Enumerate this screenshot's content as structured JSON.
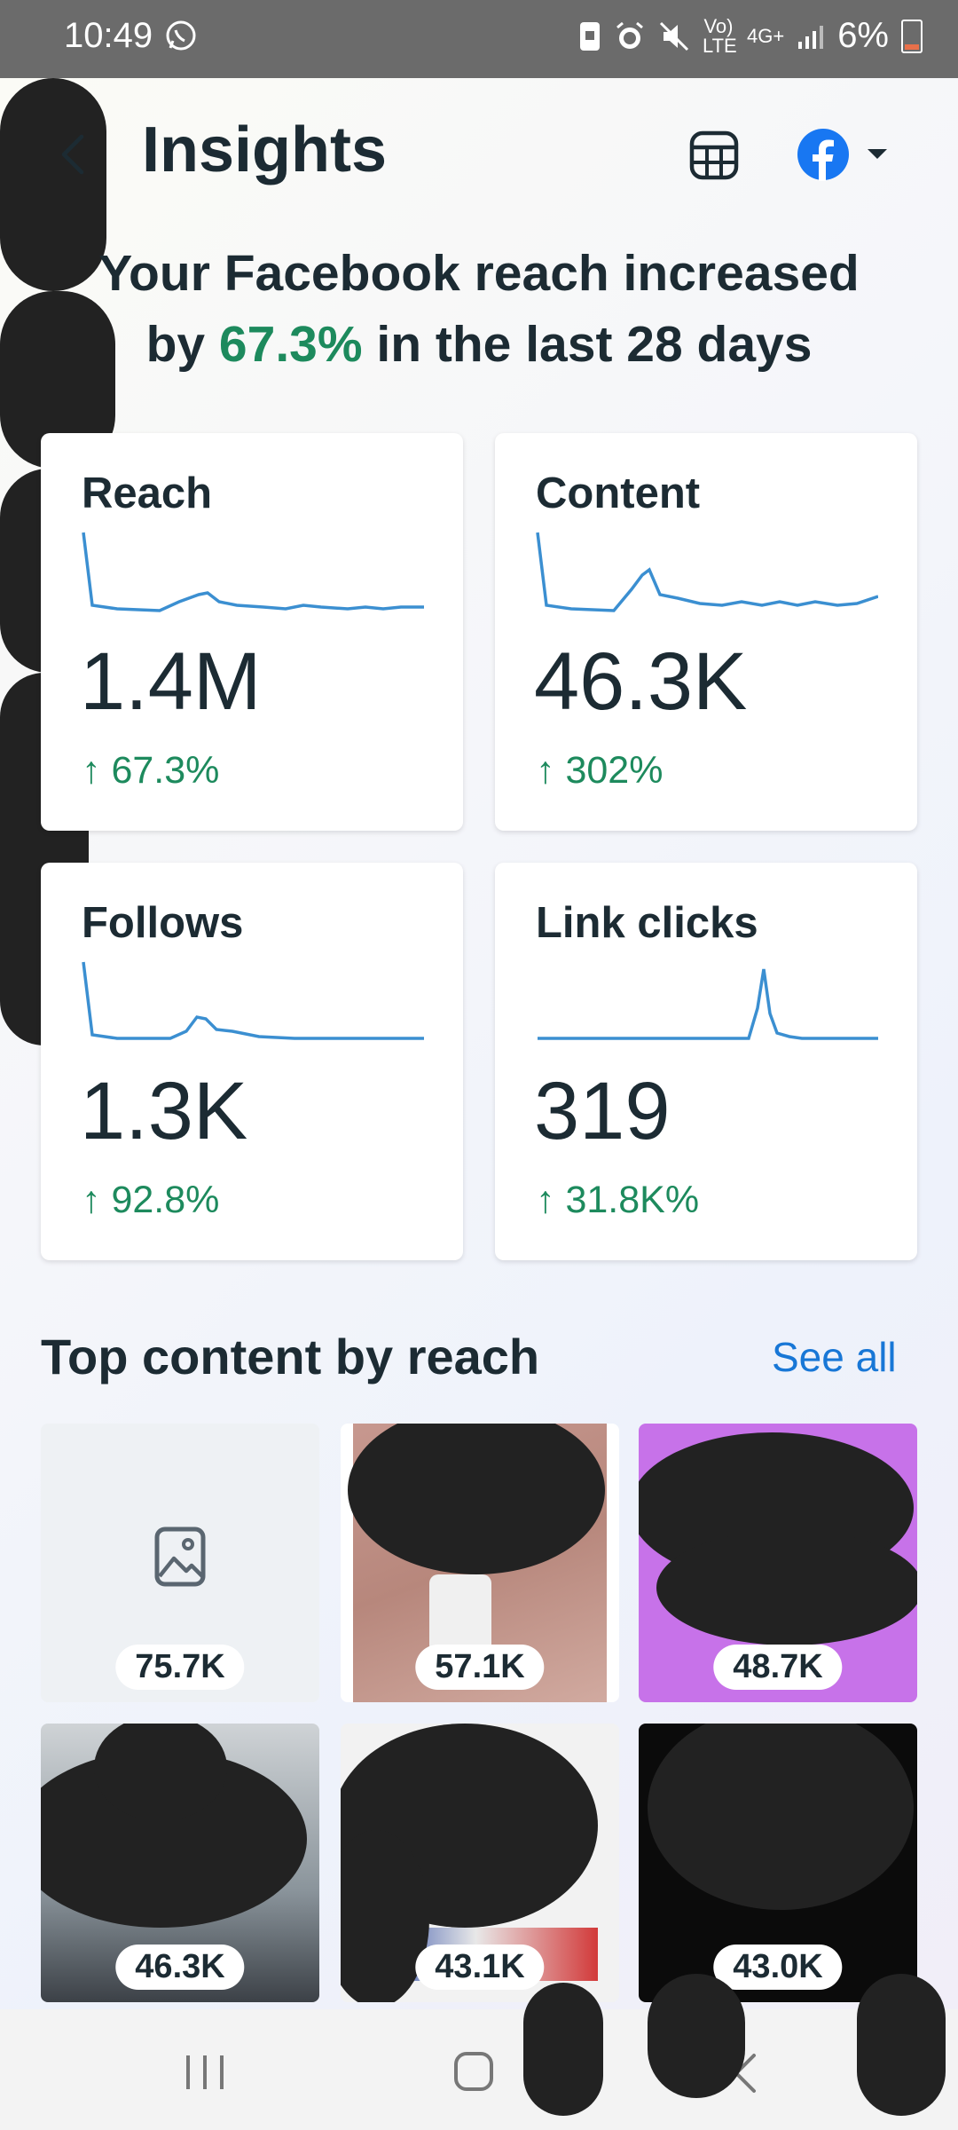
{
  "status_bar": {
    "time": "10:49",
    "network": "Vo) LTE",
    "network_type": "4G+",
    "battery": "6%",
    "icons": [
      "whatsapp-icon",
      "screenshot-icon",
      "alarm-icon",
      "mute-icon",
      "signal-icon",
      "battery-icon"
    ]
  },
  "header": {
    "title": "Insights",
    "back_icon": "back-arrow-icon",
    "table_icon": "table-icon",
    "account_icon": "facebook-icon"
  },
  "headline": {
    "line1": "Your Facebook reach increased",
    "line2_prefix": "by ",
    "highlight": "67.3%",
    "line2_suffix": " in the last 28 days"
  },
  "cards": [
    {
      "label": "Reach",
      "value": "1.4M",
      "change": "67.3%"
    },
    {
      "label": "Content",
      "value": "46.3K",
      "change": "302%"
    },
    {
      "label": "Follows",
      "value": "1.3K",
      "change": "92.8%"
    },
    {
      "label": "Link clicks",
      "value": "319",
      "change": "31.8K%"
    }
  ],
  "top_content": {
    "title": "Top content by reach",
    "see_all": "See all",
    "items": [
      {
        "count": "75.7K"
      },
      {
        "count": "57.1K"
      },
      {
        "count": "48.7K"
      },
      {
        "count": "46.3K"
      },
      {
        "count": "43.1K"
      },
      {
        "count": "43.0K"
      }
    ]
  },
  "colors": {
    "accent_green": "#1d8a5d",
    "link_blue": "#1877d6",
    "spark_line": "#3b8fd1",
    "facebook_blue": "#1877f2"
  }
}
